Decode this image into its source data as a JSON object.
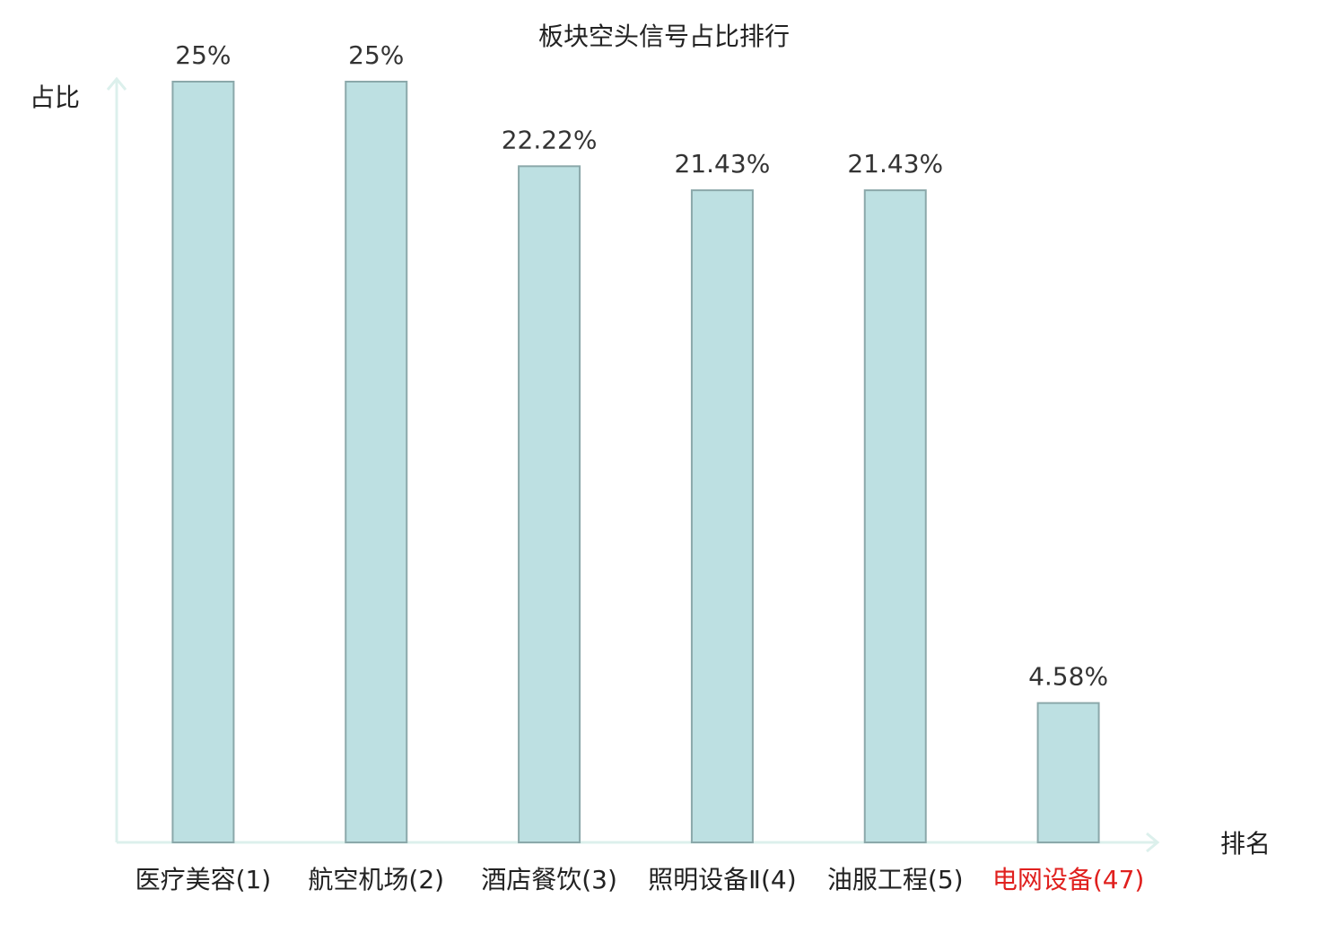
{
  "chart_data": {
    "type": "bar",
    "title": "板块空头信号占比排行",
    "y_label": "占比",
    "x_label": "排名",
    "categories": [
      "医疗美容(1)",
      "航空机场(2)",
      "酒店餐饮(3)",
      "照明设备Ⅱ(4)",
      "油服工程(5)",
      "电网设备(47)"
    ],
    "category_colors": [
      "#222222",
      "#222222",
      "#222222",
      "#222222",
      "#222222",
      "#e0201e"
    ],
    "values": [
      25,
      25,
      22.22,
      21.43,
      21.43,
      4.58
    ],
    "value_labels": [
      "25%",
      "25%",
      "22.22%",
      "21.43%",
      "21.43%",
      "4.58%"
    ],
    "color": "#bde0e2",
    "edge_color": "#8ba8aa",
    "axis_color": "#dcf0ec",
    "ylim": [
      0,
      25
    ]
  }
}
